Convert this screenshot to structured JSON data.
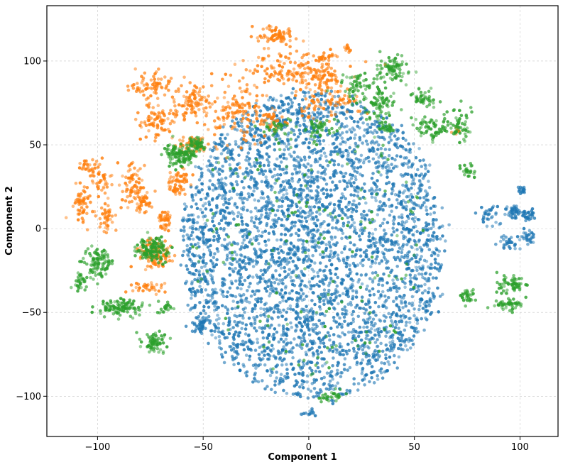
{
  "chart_data": {
    "type": "scatter",
    "title": "",
    "xlabel": "Component 1",
    "ylabel": "Component 2",
    "xlim": [
      -124,
      118
    ],
    "ylim": [
      -124,
      133
    ],
    "xticks": [
      -100,
      -50,
      0,
      50,
      100
    ],
    "yticks": [
      -100,
      -50,
      0,
      50,
      100
    ],
    "xtick_labels": [
      "−100",
      "−50",
      "0",
      "50",
      "100"
    ],
    "ytick_labels": [
      "−100",
      "−50",
      "0",
      "50",
      "100"
    ],
    "grid": true,
    "legend": "none",
    "colors": [
      "#1f77b4",
      "#ff7f0e",
      "#2ca02c"
    ],
    "series": [
      {
        "color": "#1f77b4",
        "clusters": [
          {
            "cx": 2,
            "cy": -10,
            "rx": 62,
            "ry": 92,
            "n": 3800,
            "shape": "disc"
          },
          {
            "cx": 97,
            "cy": 10,
            "rx": 3,
            "ry": 3,
            "n": 40
          },
          {
            "cx": 104,
            "cy": 8,
            "rx": 3,
            "ry": 3,
            "n": 30
          },
          {
            "cx": 103,
            "cy": -5,
            "rx": 3,
            "ry": 3,
            "n": 30
          },
          {
            "cx": 101,
            "cy": 23,
            "rx": 2,
            "ry": 2,
            "n": 20
          },
          {
            "cx": 85,
            "cy": 8,
            "rx": 5,
            "ry": 5,
            "n": 30
          },
          {
            "cx": 95,
            "cy": -8,
            "rx": 4,
            "ry": 4,
            "n": 30
          },
          {
            "cx": -52,
            "cy": -57,
            "rx": 4,
            "ry": 4,
            "n": 40
          },
          {
            "cx": 0,
            "cy": -110,
            "rx": 3,
            "ry": 2,
            "n": 15
          }
        ]
      },
      {
        "color": "#ff7f0e",
        "clusters": [
          {
            "cx": -107,
            "cy": 15,
            "rx": 4,
            "ry": 9,
            "n": 60
          },
          {
            "cx": -105,
            "cy": 38,
            "rx": 4,
            "ry": 3,
            "n": 25
          },
          {
            "cx": -98,
            "cy": 30,
            "rx": 4,
            "ry": 8,
            "n": 40
          },
          {
            "cx": -95,
            "cy": 8,
            "rx": 4,
            "ry": 8,
            "n": 40
          },
          {
            "cx": -83,
            "cy": 24,
            "rx": 5,
            "ry": 12,
            "n": 80
          },
          {
            "cx": -78,
            "cy": 15,
            "rx": 3,
            "ry": 4,
            "n": 30
          },
          {
            "cx": -68,
            "cy": 5,
            "rx": 3,
            "ry": 5,
            "n": 40
          },
          {
            "cx": -62,
            "cy": 30,
            "rx": 5,
            "ry": 5,
            "n": 40
          },
          {
            "cx": -62,
            "cy": 23,
            "rx": 4,
            "ry": 3,
            "n": 25
          },
          {
            "cx": -73,
            "cy": -15,
            "rx": 6,
            "ry": 8,
            "n": 120
          },
          {
            "cx": -75,
            "cy": -35,
            "rx": 6,
            "ry": 3,
            "n": 35
          },
          {
            "cx": -75,
            "cy": 85,
            "rx": 8,
            "ry": 6,
            "n": 70
          },
          {
            "cx": -72,
            "cy": 65,
            "rx": 8,
            "ry": 8,
            "n": 80
          },
          {
            "cx": -55,
            "cy": 75,
            "rx": 8,
            "ry": 10,
            "n": 90
          },
          {
            "cx": -55,
            "cy": 50,
            "rx": 6,
            "ry": 4,
            "n": 50
          },
          {
            "cx": -35,
            "cy": 68,
            "rx": 12,
            "ry": 18,
            "n": 130
          },
          {
            "cx": -10,
            "cy": 95,
            "rx": 20,
            "ry": 10,
            "n": 130
          },
          {
            "cx": -15,
            "cy": 115,
            "rx": 8,
            "ry": 4,
            "n": 70
          },
          {
            "cx": 5,
            "cy": 90,
            "rx": 10,
            "ry": 8,
            "n": 80
          },
          {
            "cx": 10,
            "cy": 75,
            "rx": 12,
            "ry": 8,
            "n": 70
          },
          {
            "cx": 18,
            "cy": 108,
            "rx": 2,
            "ry": 2,
            "n": 12
          },
          {
            "cx": 8,
            "cy": 102,
            "rx": 4,
            "ry": 2,
            "n": 20
          },
          {
            "cx": -18,
            "cy": 65,
            "rx": 6,
            "ry": 5,
            "n": 40
          },
          {
            "cx": 70,
            "cy": 58,
            "rx": 2,
            "ry": 2,
            "n": 10
          }
        ]
      },
      {
        "color": "#2ca02c",
        "clusters": [
          {
            "cx": -60,
            "cy": 45,
            "rx": 6,
            "ry": 6,
            "n": 130
          },
          {
            "cx": -53,
            "cy": 50,
            "rx": 4,
            "ry": 3,
            "n": 40
          },
          {
            "cx": -75,
            "cy": -12,
            "rx": 6,
            "ry": 6,
            "n": 130
          },
          {
            "cx": -100,
            "cy": -20,
            "rx": 5,
            "ry": 7,
            "n": 100
          },
          {
            "cx": -108,
            "cy": -32,
            "rx": 3,
            "ry": 4,
            "n": 30
          },
          {
            "cx": -89,
            "cy": -47,
            "rx": 9,
            "ry": 4,
            "n": 110
          },
          {
            "cx": -73,
            "cy": -68,
            "rx": 5,
            "ry": 5,
            "n": 70
          },
          {
            "cx": -68,
            "cy": -47,
            "rx": 3,
            "ry": 3,
            "n": 20
          },
          {
            "cx": 22,
            "cy": 85,
            "rx": 6,
            "ry": 6,
            "n": 50
          },
          {
            "cx": 40,
            "cy": 95,
            "rx": 8,
            "ry": 7,
            "n": 80
          },
          {
            "cx": 33,
            "cy": 75,
            "rx": 6,
            "ry": 10,
            "n": 80
          },
          {
            "cx": 55,
            "cy": 78,
            "rx": 5,
            "ry": 5,
            "n": 40
          },
          {
            "cx": 60,
            "cy": 60,
            "rx": 8,
            "ry": 6,
            "n": 70
          },
          {
            "cx": 72,
            "cy": 62,
            "rx": 5,
            "ry": 8,
            "n": 50
          },
          {
            "cx": 5,
            "cy": 60,
            "rx": 6,
            "ry": 5,
            "n": 45
          },
          {
            "cx": 37,
            "cy": 60,
            "rx": 3,
            "ry": 3,
            "n": 20
          },
          {
            "cx": -15,
            "cy": 60,
            "rx": 8,
            "ry": 4,
            "n": 30
          },
          {
            "cx": 95,
            "cy": -33,
            "rx": 6,
            "ry": 4,
            "n": 60
          },
          {
            "cx": 95,
            "cy": -45,
            "rx": 6,
            "ry": 3,
            "n": 50
          },
          {
            "cx": 75,
            "cy": -40,
            "rx": 4,
            "ry": 3,
            "n": 30
          },
          {
            "cx": 75,
            "cy": 35,
            "rx": 4,
            "ry": 4,
            "n": 25
          },
          {
            "cx": 10,
            "cy": -100,
            "rx": 4,
            "ry": 3,
            "n": 30
          },
          {
            "cx": 0,
            "cy": -10,
            "rx": 55,
            "ry": 80,
            "n": 160,
            "shape": "disc"
          }
        ]
      }
    ]
  }
}
